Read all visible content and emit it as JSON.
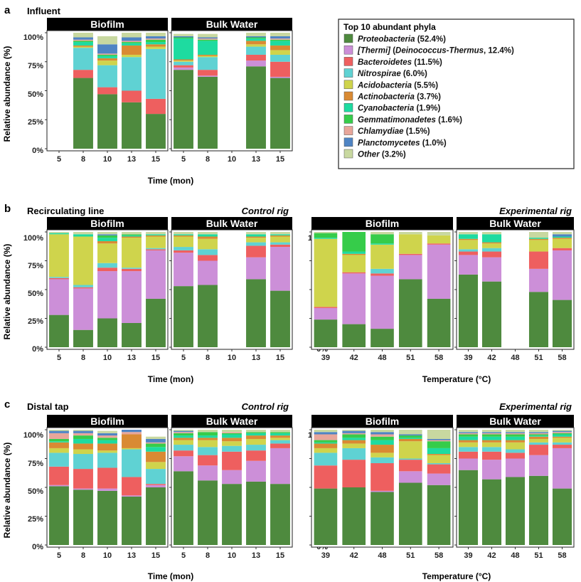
{
  "figure": {
    "panels": [
      {
        "letter": "a",
        "title": "Influent",
        "rig": ""
      },
      {
        "letter": "b",
        "title": "Recirculating line",
        "rig": ""
      },
      {
        "letter": "c",
        "title": "Distal tap",
        "rig": ""
      }
    ],
    "rig_labels": {
      "control": "Control rig",
      "experimental": "Experimental rig"
    },
    "strip_labels": {
      "biofilm": "Biofilm",
      "bulk": "Bulk Water"
    },
    "ylabel": "Relative abundance (%)",
    "xlabel_time": "Time (mon)",
    "xlabel_temp": "Temperature (°C)",
    "yticks": [
      "0%",
      "25%",
      "50%",
      "75%",
      "100%"
    ]
  },
  "legend": {
    "title": "Top 10 abundant phyla",
    "items": [
      {
        "name": "Proteobacteria",
        "pct": "(52.4%)",
        "color": "#4e8a3e"
      },
      {
        "name": "[Thermi]",
        "extra": "(Deinococcus-Thermus,",
        "pct": "12.4%)",
        "color": "#cc8fd8"
      },
      {
        "name": "Bacteroidetes",
        "pct": "(11.5%)",
        "color": "#ee5f5f"
      },
      {
        "name": "Nitrospirae",
        "pct": "(6.0%)",
        "color": "#5fd2d3"
      },
      {
        "name": "Acidobacteria",
        "pct": "(5.5%)",
        "color": "#cfd44c"
      },
      {
        "name": "Actinobacteria",
        "pct": "(3.7%)",
        "color": "#d98a33"
      },
      {
        "name": "Cyanobacteria",
        "pct": "(1.9%)",
        "color": "#1edba0"
      },
      {
        "name": "Gemmatimonadetes",
        "pct": "(1.6%)",
        "color": "#36cc4a"
      },
      {
        "name": "Chlamydiae",
        "pct": "(1.5%)",
        "color": "#e8a69a"
      },
      {
        "name": "Planctomycetes",
        "pct": "(1.0%)",
        "color": "#4f84c4"
      },
      {
        "name": "Other",
        "pct": "(3.2%)",
        "color": "#c8d8a0"
      }
    ]
  },
  "chart_data": [
    {
      "id": "a-biofilm",
      "type": "bar",
      "stacked": true,
      "title": "Influent",
      "strip": "Biofilm",
      "xlabel": "Time (mon)",
      "ylabel": "Relative abundance (%)",
      "ylim": [
        0,
        100
      ],
      "categories": [
        "5",
        "8",
        "10",
        "13",
        "15"
      ],
      "stacks": [
        [],
        [
          61,
          0,
          7,
          19,
          1,
          1,
          3,
          1,
          1,
          2,
          4
        ],
        [
          47,
          0,
          6,
          19,
          4,
          2,
          2,
          1,
          1,
          8,
          7
        ],
        [
          40,
          0,
          10,
          29,
          2,
          8,
          2,
          1,
          1,
          3,
          4
        ],
        [
          30,
          0,
          13,
          43,
          2,
          2,
          2,
          2,
          1,
          2,
          3
        ]
      ]
    },
    {
      "id": "a-bulk",
      "type": "bar",
      "stacked": true,
      "title": "Influent",
      "strip": "Bulk Water",
      "xlabel": "Time (mon)",
      "ylim": [
        0,
        100
      ],
      "categories": [
        "5",
        "8",
        "10",
        "13",
        "15"
      ],
      "stacks": [
        [
          68,
          2,
          2,
          3,
          1,
          1,
          18,
          1,
          0,
          1,
          2
        ],
        [
          62,
          1,
          5,
          11,
          1,
          1,
          12,
          1,
          1,
          1,
          3
        ],
        [],
        [
          71,
          5,
          5,
          7,
          2,
          3,
          2,
          1,
          0,
          1,
          3
        ],
        [
          61,
          1,
          13,
          6,
          4,
          4,
          4,
          1,
          1,
          2,
          3
        ]
      ]
    },
    {
      "id": "b-control-biofilm",
      "type": "bar",
      "stacked": true,
      "title": "Recirculating line",
      "strip": "Biofilm",
      "xlabel": "Time (mon)",
      "ylabel": "Relative abundance (%)",
      "ylim": [
        0,
        100
      ],
      "categories": [
        "5",
        "8",
        "10",
        "13",
        "15"
      ],
      "stacks": [
        [
          28,
          31,
          1,
          1,
          37,
          0,
          1,
          0,
          0,
          0,
          1
        ],
        [
          15,
          36,
          1,
          2,
          42,
          0,
          2,
          0,
          0,
          0,
          2
        ],
        [
          25,
          41,
          3,
          4,
          17,
          2,
          3,
          2,
          0,
          1,
          2
        ],
        [
          21,
          45,
          2,
          1,
          26,
          1,
          1,
          1,
          0,
          0,
          2
        ],
        [
          42,
          42,
          1,
          1,
          10,
          1,
          1,
          0,
          0,
          0,
          2
        ]
      ]
    },
    {
      "id": "b-control-bulk",
      "type": "bar",
      "stacked": true,
      "title": "Recirculating line",
      "strip": "Bulk Water",
      "xlabel": "Time (mon)",
      "ylim": [
        0,
        100
      ],
      "categories": [
        "5",
        "8",
        "10",
        "13",
        "15"
      ],
      "stacks": [
        [
          53,
          29,
          2,
          3,
          9,
          1,
          1,
          0,
          0,
          0,
          2
        ],
        [
          54,
          21,
          5,
          5,
          9,
          2,
          2,
          0,
          0,
          0,
          2
        ],
        [],
        [
          59,
          19,
          10,
          3,
          4,
          1,
          2,
          0,
          0,
          0,
          2
        ],
        [
          49,
          38,
          2,
          2,
          5,
          1,
          1,
          0,
          0,
          0,
          2
        ]
      ]
    },
    {
      "id": "b-exp-biofilm",
      "type": "bar",
      "stacked": true,
      "title": "Recirculating line",
      "strip": "Biofilm",
      "xlabel": "Temperature (°C)",
      "ylabel": "Relative abundance (%)",
      "ylim": [
        0,
        100
      ],
      "categories": [
        "39",
        "42",
        "48",
        "51",
        "58"
      ],
      "stacks": [
        [
          24,
          10,
          1,
          0,
          59,
          0,
          1,
          4,
          0,
          0,
          1
        ],
        [
          20,
          44,
          1,
          0,
          15,
          1,
          2,
          17,
          0,
          0,
          0
        ],
        [
          16,
          46,
          2,
          4,
          21,
          0,
          1,
          8,
          0,
          0,
          2
        ],
        [
          59,
          21,
          1,
          0,
          17,
          0,
          0,
          0,
          0,
          0,
          2
        ],
        [
          42,
          47,
          1,
          0,
          7,
          0,
          0,
          0,
          0,
          0,
          3
        ]
      ]
    },
    {
      "id": "b-exp-bulk",
      "type": "bar",
      "stacked": true,
      "title": "Recirculating line",
      "strip": "Bulk Water",
      "xlabel": "Temperature (°C)",
      "ylim": [
        0,
        100
      ],
      "categories": [
        "39",
        "42",
        "48",
        "51",
        "58"
      ],
      "stacks": [
        [
          63,
          17,
          3,
          2,
          8,
          1,
          4,
          0,
          0,
          0,
          2
        ],
        [
          57,
          21,
          5,
          3,
          4,
          1,
          7,
          0,
          0,
          0,
          2
        ],
        [],
        [
          48,
          20,
          15,
          0,
          10,
          1,
          1,
          0,
          0,
          0,
          5
        ],
        [
          41,
          43,
          2,
          0,
          8,
          1,
          1,
          0,
          0,
          2,
          2
        ]
      ]
    },
    {
      "id": "c-control-biofilm",
      "type": "bar",
      "stacked": true,
      "title": "Distal tap",
      "strip": "Biofilm",
      "xlabel": "Time (mon)",
      "ylabel": "Relative abundance (%)",
      "ylim": [
        0,
        100
      ],
      "categories": [
        "5",
        "8",
        "10",
        "13",
        "15"
      ],
      "stacks": [
        [
          51,
          1,
          16,
          12,
          4,
          5,
          1,
          2,
          5,
          2,
          1
        ],
        [
          48,
          1,
          17,
          13,
          4,
          5,
          4,
          3,
          2,
          2,
          1
        ],
        [
          47,
          2,
          18,
          13,
          2,
          6,
          3,
          2,
          2,
          2,
          2
        ],
        [
          42,
          1,
          16,
          24,
          1,
          12,
          0,
          0,
          2,
          2,
          0
        ],
        [
          50,
          2,
          1,
          13,
          6,
          9,
          4,
          3,
          1,
          3,
          2
        ]
      ]
    },
    {
      "id": "c-control-bulk",
      "type": "bar",
      "stacked": true,
      "title": "Distal tap",
      "strip": "Bulk Water",
      "xlabel": "Time (mon)",
      "ylim": [
        0,
        100
      ],
      "categories": [
        "5",
        "8",
        "10",
        "13",
        "15"
      ],
      "stacks": [
        [
          64,
          13,
          5,
          5,
          4,
          2,
          2,
          2,
          1,
          1,
          1
        ],
        [
          56,
          13,
          9,
          7,
          6,
          2,
          2,
          3,
          0,
          0,
          2
        ],
        [
          53,
          12,
          16,
          5,
          4,
          3,
          3,
          1,
          1,
          0,
          2
        ],
        [
          55,
          18,
          9,
          5,
          5,
          3,
          2,
          1,
          0,
          0,
          2
        ],
        [
          53,
          31,
          4,
          3,
          2,
          2,
          2,
          1,
          0,
          0,
          2
        ]
      ]
    },
    {
      "id": "c-exp-biofilm",
      "type": "bar",
      "stacked": true,
      "title": "Distal tap",
      "strip": "Biofilm",
      "xlabel": "Temperature (°C)",
      "ylabel": "Relative abundance (%)",
      "ylim": [
        0,
        100
      ],
      "categories": [
        "39",
        "42",
        "48",
        "51",
        "58"
      ],
      "stacks": [
        [
          49,
          0,
          20,
          11,
          4,
          4,
          1,
          2,
          5,
          2,
          2
        ],
        [
          50,
          0,
          24,
          10,
          4,
          3,
          2,
          3,
          1,
          2,
          1
        ],
        [
          46,
          1,
          24,
          5,
          4,
          7,
          4,
          3,
          2,
          2,
          2
        ],
        [
          54,
          10,
          10,
          1,
          15,
          2,
          1,
          2,
          0,
          1,
          4
        ],
        [
          52,
          10,
          8,
          1,
          7,
          1,
          5,
          6,
          1,
          1,
          8
        ]
      ]
    },
    {
      "id": "c-exp-bulk",
      "type": "bar",
      "stacked": true,
      "title": "Distal tap",
      "strip": "Bulk Water",
      "xlabel": "Temperature (°C)",
      "ylim": [
        0,
        100
      ],
      "categories": [
        "39",
        "42",
        "48",
        "51",
        "58"
      ],
      "stacks": [
        [
          65,
          10,
          6,
          4,
          4,
          2,
          3,
          2,
          1,
          1,
          2
        ],
        [
          57,
          17,
          7,
          4,
          4,
          2,
          3,
          2,
          1,
          1,
          2
        ],
        [
          59,
          16,
          5,
          3,
          6,
          2,
          3,
          2,
          1,
          1,
          2
        ],
        [
          60,
          18,
          9,
          2,
          3,
          2,
          1,
          1,
          1,
          1,
          2
        ],
        [
          49,
          35,
          3,
          2,
          4,
          1,
          2,
          1,
          1,
          1,
          1
        ]
      ]
    }
  ]
}
